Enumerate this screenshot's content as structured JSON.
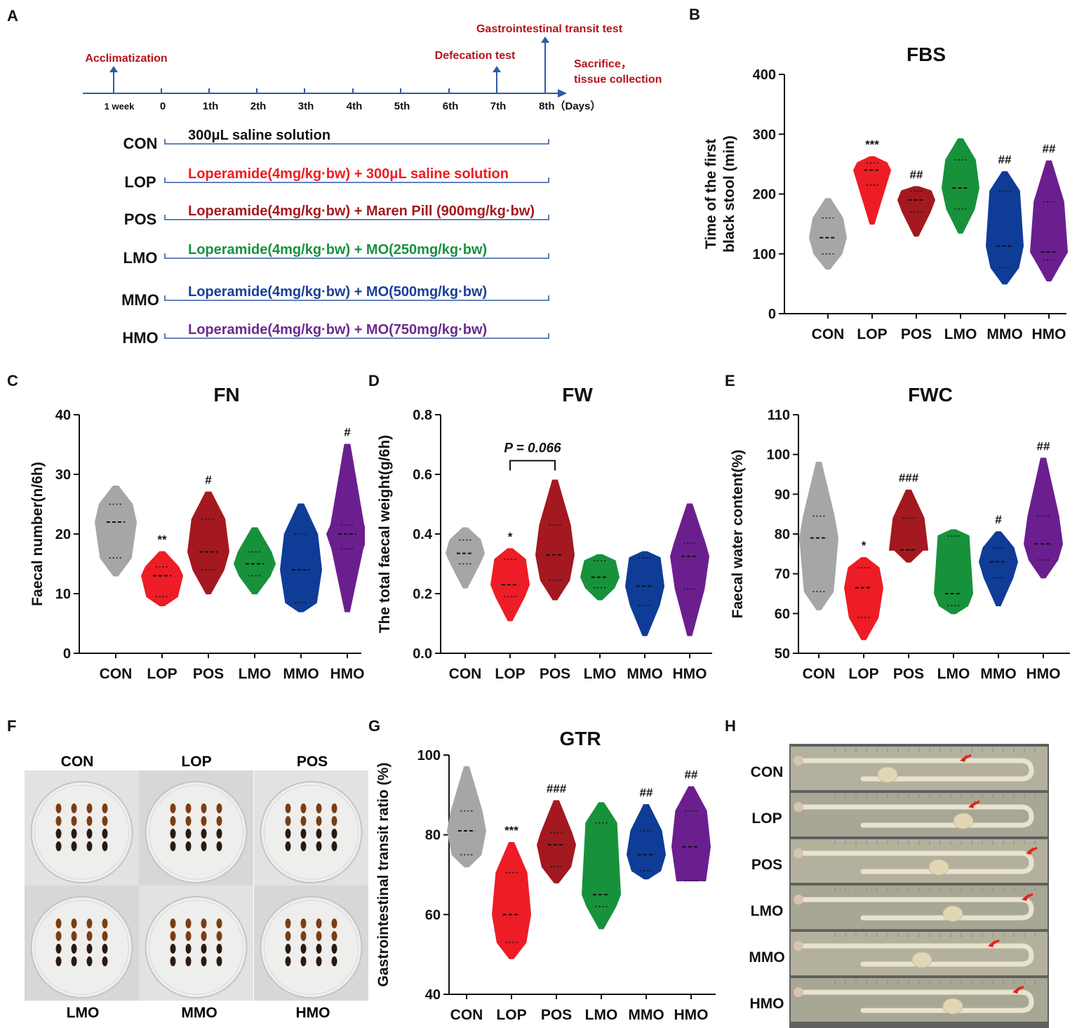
{
  "panel_letters": {
    "a": "A",
    "b": "B",
    "c": "C",
    "d": "D",
    "e": "E",
    "f": "F",
    "g": "G",
    "h": "H"
  },
  "timeline": {
    "ticks": [
      "1 week",
      "0",
      "1th",
      "2th",
      "3th",
      "4th",
      "5th",
      "6th",
      "7th",
      "8th（Days）"
    ],
    "events": {
      "acclimatization": "Acclimatization",
      "defecation": "Defecation test",
      "gastro": "Gastrointestinal transit test",
      "sacrifice_1": "Sacrifice，",
      "sacrifice_2": "tissue collection"
    },
    "groups": [
      {
        "name": "CON",
        "treatment": "300μL  saline solution",
        "color": "#111111"
      },
      {
        "name": "LOP",
        "treatment": "Loperamide(4mg/kg·bw) + 300μL  saline solution",
        "color": "#ee1c25"
      },
      {
        "name": "POS",
        "treatment": "Loperamide(4mg/kg·bw) + Maren Pill (900mg/kg·bw)",
        "color": "#a3191f"
      },
      {
        "name": "LMO",
        "treatment": "Loperamide(4mg/kg·bw) + MO(250mg/kg·bw)",
        "color": "#17923b"
      },
      {
        "name": "MMO",
        "treatment": "Loperamide(4mg/kg·bw) + MO(500mg/kg·bw)",
        "color": "#1a3f99"
      },
      {
        "name": "HMO",
        "treatment": "Loperamide(4mg/kg·bw) + MO(750mg/kg·bw)",
        "color": "#6c2a8e"
      }
    ],
    "line_color": "#2e5aa8",
    "event_color": "#b5131c"
  },
  "group_colors": [
    "#a6a6a8",
    "#ee1c25",
    "#a3191f",
    "#17923b",
    "#0f3c96",
    "#6b1f8f"
  ],
  "chart_data": [
    {
      "id": "FBS",
      "type": "violin",
      "title": "FBS",
      "ylabel": [
        "Time of the first",
        "black stool  (min)"
      ],
      "ylim": [
        0,
        400
      ],
      "yticks": [
        0,
        100,
        200,
        300,
        400
      ],
      "categories": [
        "CON",
        "LOP",
        "POS",
        "LMO",
        "MMO",
        "HMO"
      ],
      "groups": [
        {
          "min": 75,
          "max": 192,
          "q1": 100,
          "median": 127,
          "q3": 160
        },
        {
          "min": 150,
          "max": 262,
          "q1": 215,
          "median": 240,
          "q3": 252
        },
        {
          "min": 130,
          "max": 212,
          "q1": 170,
          "median": 190,
          "q3": 205
        },
        {
          "min": 135,
          "max": 292,
          "q1": 175,
          "median": 210,
          "q3": 257
        },
        {
          "min": 50,
          "max": 237,
          "q1": 77,
          "median": 113,
          "q3": 205
        },
        {
          "min": 55,
          "max": 255,
          "q1": 90,
          "median": 103,
          "q3": 187
        }
      ],
      "annotations": [
        "",
        "***",
        "##",
        "",
        "##",
        "##"
      ]
    },
    {
      "id": "FN",
      "type": "violin",
      "title": "FN",
      "ylabel": [
        "Faecal number(n/6h)"
      ],
      "ylim": [
        0,
        40
      ],
      "yticks": [
        0,
        10,
        20,
        30,
        40
      ],
      "categories": [
        "CON",
        "LOP",
        "POS",
        "LMO",
        "MMO",
        "HMO"
      ],
      "groups": [
        {
          "min": 13,
          "max": 28,
          "q1": 16,
          "median": 22,
          "q3": 25
        },
        {
          "min": 8,
          "max": 17,
          "q1": 9.5,
          "median": 13,
          "q3": 14.5
        },
        {
          "min": 10,
          "max": 27,
          "q1": 14,
          "median": 17,
          "q3": 22.5
        },
        {
          "min": 10,
          "max": 21,
          "q1": 13,
          "median": 15,
          "q3": 17
        },
        {
          "min": 7,
          "max": 25,
          "q1": 8.5,
          "median": 14,
          "q3": 20
        },
        {
          "min": 7,
          "max": 35,
          "q1": 17.5,
          "median": 20,
          "q3": 21.5
        }
      ],
      "annotations": [
        "",
        "**",
        "#",
        "",
        "",
        "#"
      ]
    },
    {
      "id": "FW",
      "type": "violin",
      "title": "FW",
      "ylabel": [
        "The total faecal weight(g/6h)"
      ],
      "ylim": [
        0,
        0.8
      ],
      "yticks": [
        0.0,
        0.2,
        0.4,
        0.6,
        0.8
      ],
      "tick_decimals": 1,
      "categories": [
        "CON",
        "LOP",
        "POS",
        "LMO",
        "MMO",
        "HMO"
      ],
      "groups": [
        {
          "min": 0.22,
          "max": 0.42,
          "q1": 0.3,
          "median": 0.335,
          "q3": 0.38
        },
        {
          "min": 0.11,
          "max": 0.35,
          "q1": 0.19,
          "median": 0.23,
          "q3": 0.315
        },
        {
          "min": 0.18,
          "max": 0.58,
          "q1": 0.245,
          "median": 0.33,
          "q3": 0.43
        },
        {
          "min": 0.18,
          "max": 0.33,
          "q1": 0.22,
          "median": 0.255,
          "q3": 0.31
        },
        {
          "min": 0.06,
          "max": 0.34,
          "q1": 0.16,
          "median": 0.225,
          "q3": 0.32
        },
        {
          "min": 0.06,
          "max": 0.5,
          "q1": 0.215,
          "median": 0.325,
          "q3": 0.37
        }
      ],
      "annotations": [
        "",
        "*",
        "",
        "",
        "",
        ""
      ],
      "bracket": {
        "from": 1,
        "to": 2,
        "label": "P = 0.066"
      }
    },
    {
      "id": "FWC",
      "type": "violin",
      "title": "FWC",
      "ylabel": [
        "Faecal water content(%)"
      ],
      "ylim": [
        50,
        110
      ],
      "yticks": [
        50,
        60,
        70,
        80,
        90,
        100,
        110
      ],
      "categories": [
        "CON",
        "LOP",
        "POS",
        "LMO",
        "MMO",
        "HMO"
      ],
      "groups": [
        {
          "min": 61,
          "max": 98,
          "q1": 65.5,
          "median": 79,
          "q3": 84.5
        },
        {
          "min": 53.5,
          "max": 74,
          "q1": 59,
          "median": 66.5,
          "q3": 71.5
        },
        {
          "min": 73,
          "max": 91,
          "q1": 76,
          "median": 76,
          "q3": 84
        },
        {
          "min": 60,
          "max": 81,
          "q1": 62,
          "median": 65,
          "q3": 79.5
        },
        {
          "min": 62,
          "max": 80.5,
          "q1": 69,
          "median": 73,
          "q3": 76.5
        },
        {
          "min": 69,
          "max": 99,
          "q1": 73.5,
          "median": 77.5,
          "q3": 84.5
        }
      ],
      "annotations": [
        "",
        "*",
        "###",
        "",
        "#",
        "##"
      ]
    },
    {
      "id": "GTR",
      "type": "violin",
      "title": "GTR",
      "ylabel": [
        "Gastrointestinal transit ratio (%)"
      ],
      "ylim": [
        40,
        100
      ],
      "yticks": [
        40,
        60,
        80,
        100
      ],
      "categories": [
        "CON",
        "LOP",
        "POS",
        "LMO",
        "MMO",
        "HMO"
      ],
      "groups": [
        {
          "min": 72,
          "max": 97,
          "q1": 75,
          "median": 81,
          "q3": 86
        },
        {
          "min": 49,
          "max": 78,
          "q1": 53,
          "median": 60,
          "q3": 70.5
        },
        {
          "min": 68,
          "max": 88.5,
          "q1": 72,
          "median": 77.5,
          "q3": 80.5
        },
        {
          "min": 56.5,
          "max": 88,
          "q1": 62,
          "median": 65,
          "q3": 83
        },
        {
          "min": 69,
          "max": 87.5,
          "q1": 71,
          "median": 75,
          "q3": 81
        },
        {
          "min": 68.5,
          "max": 92,
          "q1": 68.5,
          "median": 77,
          "q3": 86
        }
      ],
      "annotations": [
        "",
        "***",
        "###",
        "",
        "##",
        "##"
      ]
    }
  ],
  "photo_f": {
    "top_labels": [
      "CON",
      "LOP",
      "POS"
    ],
    "bottom_labels": [
      "LMO",
      "MMO",
      "HMO"
    ]
  },
  "photo_h": {
    "labels": [
      "CON",
      "LOP",
      "POS",
      "LMO",
      "MMO",
      "HMO"
    ]
  }
}
